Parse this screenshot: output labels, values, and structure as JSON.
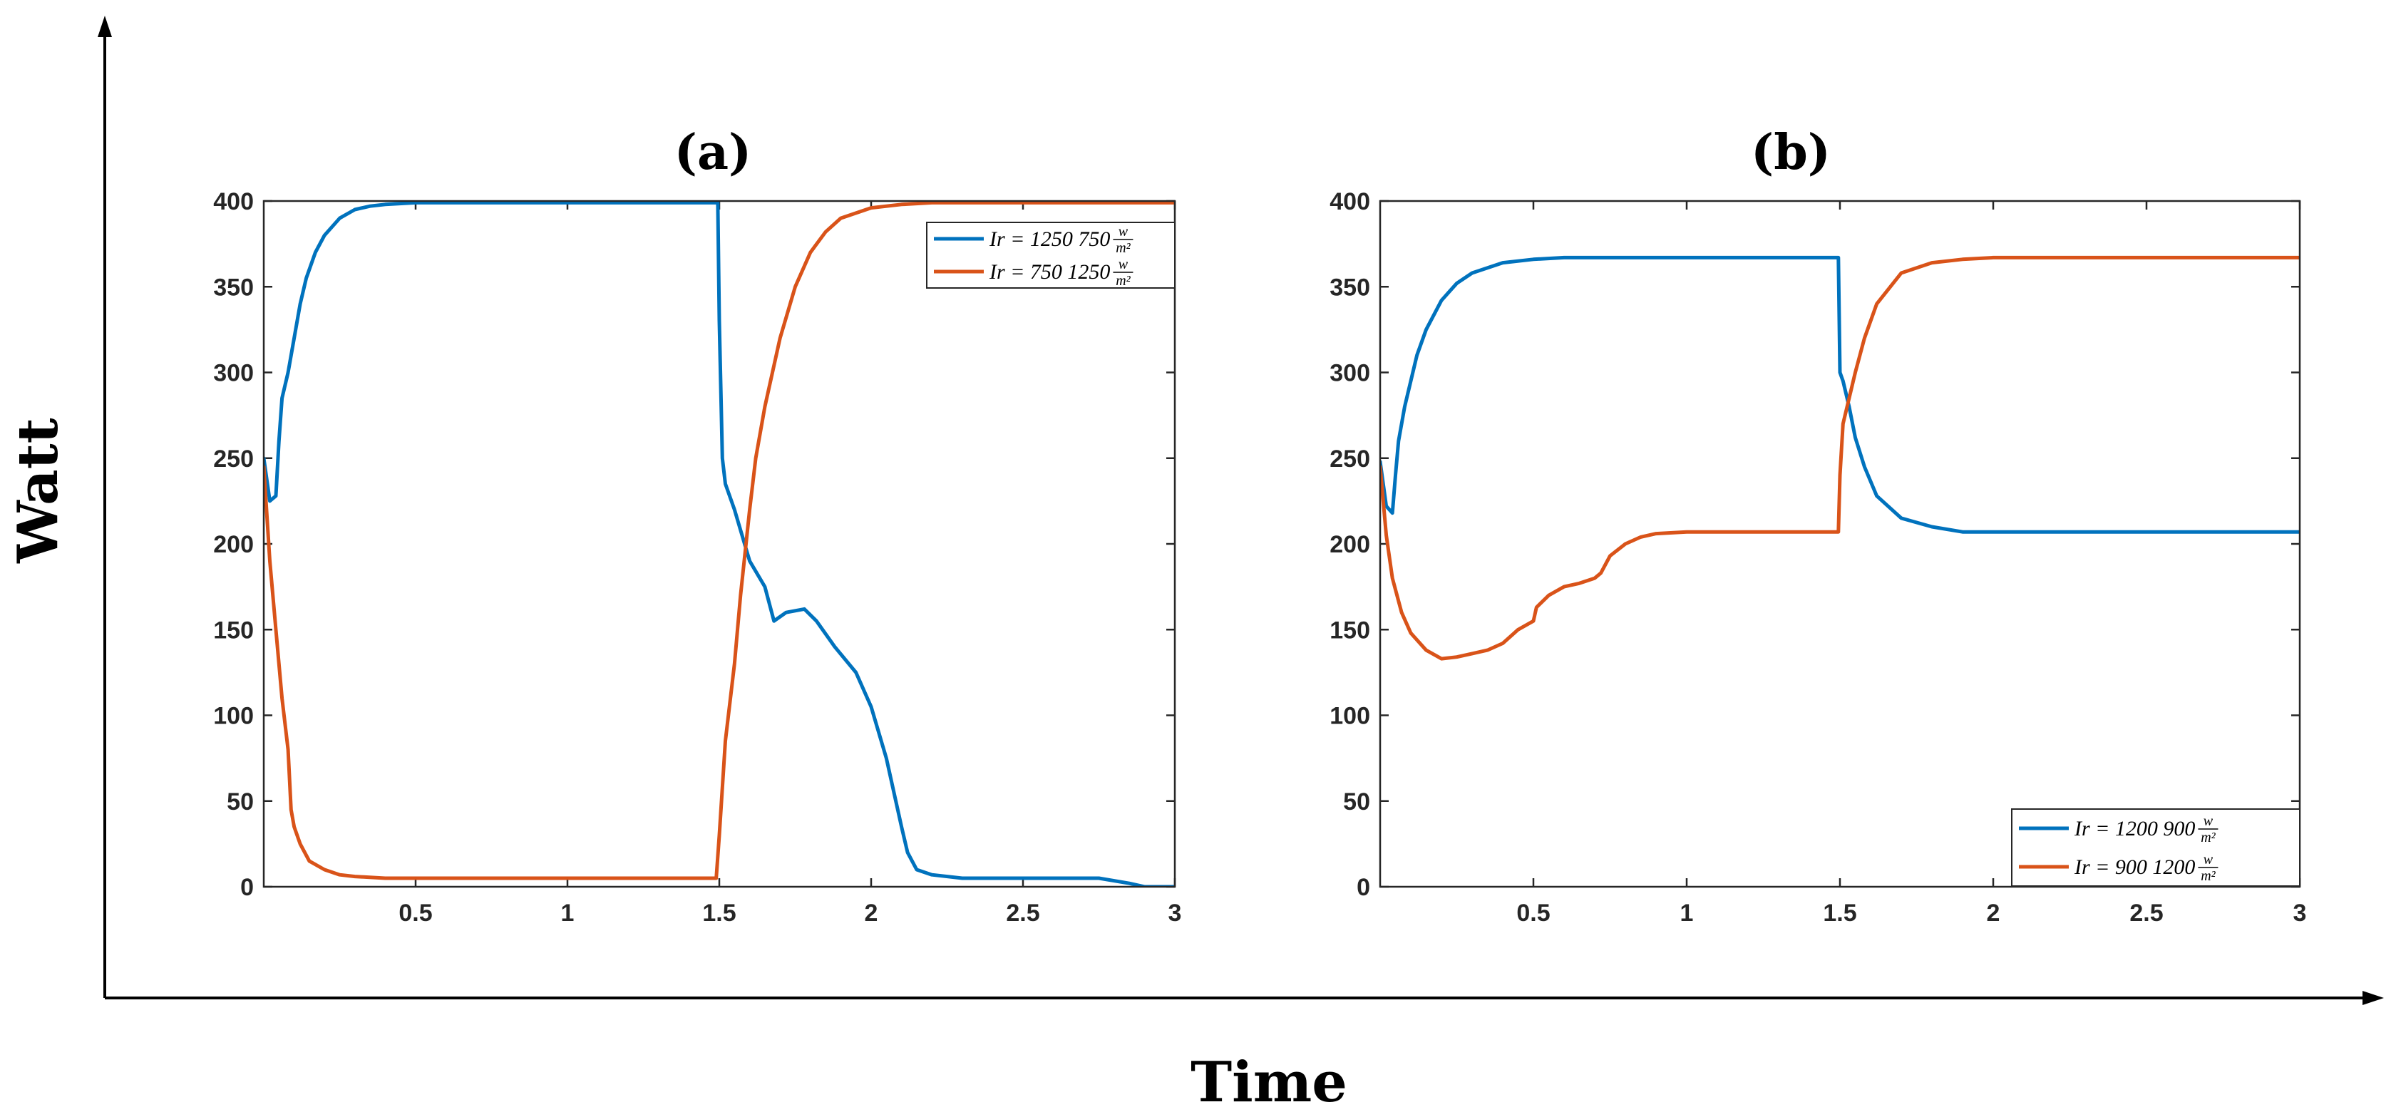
{
  "figure": {
    "ylabel": "Watt",
    "xlabel": "Time"
  },
  "chart_data": [
    {
      "type": "line",
      "title": "(a)",
      "xlim": [
        0,
        3
      ],
      "ylim": [
        0,
        400
      ],
      "xticks": [
        "0.5",
        "1",
        "1.5",
        "2",
        "2.5",
        "3"
      ],
      "yticks": [
        "0",
        "50",
        "100",
        "150",
        "200",
        "250",
        "300",
        "350",
        "400"
      ],
      "legend_position": "top-right",
      "series": [
        {
          "name": "Ir = 1250 750 w/m²",
          "legend_main": "Ir = 1250 750",
          "unit_num": "w",
          "unit_den": "m²",
          "color": "#0072BD",
          "x": [
            0,
            0.02,
            0.04,
            0.05,
            0.06,
            0.08,
            0.1,
            0.12,
            0.14,
            0.17,
            0.2,
            0.25,
            0.3,
            0.35,
            0.4,
            0.5,
            0.6,
            1.0,
            1.495,
            1.5,
            1.51,
            1.52,
            1.55,
            1.6,
            1.65,
            1.68,
            1.72,
            1.78,
            1.82,
            1.88,
            1.95,
            2.0,
            2.05,
            2.1,
            2.12,
            2.15,
            2.2,
            2.3,
            2.5,
            2.75,
            2.85,
            2.9,
            3.0
          ],
          "y": [
            250,
            225,
            228,
            260,
            285,
            300,
            320,
            340,
            355,
            370,
            380,
            390,
            395,
            397,
            398,
            399,
            399,
            399,
            399,
            330,
            250,
            235,
            220,
            190,
            175,
            155,
            160,
            162,
            155,
            140,
            125,
            105,
            75,
            35,
            20,
            10,
            7,
            5,
            5,
            5,
            2,
            0,
            0
          ]
        },
        {
          "name": "Ir = 750 1250 w/m²",
          "legend_main": "Ir = 750 1250",
          "unit_num": "w",
          "unit_den": "m²",
          "color": "#D95319",
          "x": [
            0,
            0.02,
            0.04,
            0.06,
            0.08,
            0.09,
            0.1,
            0.12,
            0.15,
            0.2,
            0.25,
            0.3,
            0.4,
            0.6,
            0.8,
            1.0,
            1.2,
            1.4,
            1.49,
            1.5,
            1.52,
            1.55,
            1.57,
            1.6,
            1.62,
            1.65,
            1.7,
            1.75,
            1.8,
            1.85,
            1.9,
            2.0,
            2.1,
            2.2,
            2.4,
            3.0
          ],
          "y": [
            245,
            190,
            150,
            110,
            80,
            45,
            35,
            25,
            15,
            10,
            7,
            6,
            5,
            5,
            5,
            5,
            5,
            5,
            5,
            30,
            85,
            130,
            170,
            220,
            250,
            280,
            320,
            350,
            370,
            382,
            390,
            396,
            398,
            399,
            399,
            399
          ]
        }
      ]
    },
    {
      "type": "line",
      "title": "(b)",
      "xlim": [
        0,
        3
      ],
      "ylim": [
        0,
        400
      ],
      "xticks": [
        "0.5",
        "1",
        "1.5",
        "2",
        "2.5",
        "3"
      ],
      "yticks": [
        "0",
        "50",
        "100",
        "150",
        "200",
        "250",
        "300",
        "350",
        "400"
      ],
      "legend_position": "bottom-right",
      "series": [
        {
          "name": "Ir = 1200 900 w/m²",
          "legend_main": "Ir = 1200 900",
          "unit_num": "w",
          "unit_den": "m²",
          "color": "#0072BD",
          "x": [
            0,
            0.02,
            0.04,
            0.05,
            0.06,
            0.08,
            0.1,
            0.12,
            0.15,
            0.2,
            0.25,
            0.3,
            0.4,
            0.5,
            0.6,
            1.0,
            1.495,
            1.5,
            1.51,
            1.53,
            1.55,
            1.58,
            1.62,
            1.7,
            1.8,
            1.9,
            2.0,
            3.0
          ],
          "y": [
            248,
            222,
            218,
            240,
            260,
            280,
            295,
            310,
            325,
            342,
            352,
            358,
            364,
            366,
            367,
            367,
            367,
            300,
            295,
            280,
            262,
            245,
            228,
            215,
            210,
            207,
            207,
            207
          ]
        },
        {
          "name": "Ir = 900 1200 w/m²",
          "legend_main": "Ir = 900 1200",
          "unit_num": "w",
          "unit_den": "m²",
          "color": "#D95319",
          "x": [
            0,
            0.02,
            0.04,
            0.07,
            0.1,
            0.15,
            0.2,
            0.25,
            0.3,
            0.35,
            0.4,
            0.45,
            0.5,
            0.51,
            0.55,
            0.6,
            0.65,
            0.7,
            0.72,
            0.75,
            0.8,
            0.85,
            0.9,
            1.0,
            1.2,
            1.495,
            1.5,
            1.51,
            1.53,
            1.55,
            1.58,
            1.62,
            1.7,
            1.8,
            1.9,
            2.0,
            3.0
          ],
          "y": [
            245,
            205,
            180,
            160,
            148,
            138,
            133,
            134,
            136,
            138,
            142,
            150,
            155,
            163,
            170,
            175,
            177,
            180,
            183,
            193,
            200,
            204,
            206,
            207,
            207,
            207,
            240,
            270,
            285,
            300,
            320,
            340,
            358,
            364,
            366,
            367,
            367
          ]
        }
      ]
    }
  ]
}
